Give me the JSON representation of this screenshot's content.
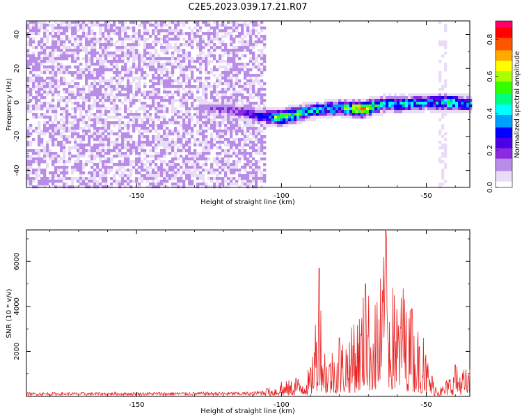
{
  "title": "C2E5.2023.039.17.21.R07",
  "colors": {
    "snr_line": "#e8201f",
    "axis": "#000000",
    "background": "#ffffff"
  },
  "colormap": [
    "#ffffff",
    "#e9dcf7",
    "#b98ce8",
    "#8a2be2",
    "#4b00e8",
    "#0000ff",
    "#00a0ff",
    "#00ffff",
    "#00ff7f",
    "#33ff00",
    "#aaff00",
    "#ffff00",
    "#ffaa00",
    "#ff5500",
    "#ff0000",
    "#ff0066"
  ],
  "chart_data": [
    {
      "type": "heatmap",
      "name": "spectrogram",
      "xlabel": "Height of straight line (km)",
      "ylabel": "Frequency (Hz)",
      "xlim": [
        -188,
        -35
      ],
      "ylim": [
        -50,
        48
      ],
      "xticks": [
        -150,
        -100,
        -50
      ],
      "yticks": [
        -40,
        -20,
        0,
        20,
        40
      ],
      "xtick_labels": [
        "-150",
        "-100",
        "-50"
      ],
      "ytick_labels": [
        "-40",
        "-20",
        "0",
        "20",
        "40"
      ],
      "colorbar": {
        "label": "Normalized spectral amplitude",
        "range": [
          0.0,
          0.9
        ],
        "ticks": [
          0.0,
          0.2,
          0.4,
          0.6,
          0.8
        ],
        "tick_labels": [
          "0.0",
          "0.2",
          "0.4",
          "0.6",
          "0.8"
        ]
      },
      "features": {
        "noise_region_x": [
          -188,
          -105
        ],
        "noise_amplitude": [
          0.05,
          0.15
        ],
        "signal_band": [
          {
            "x": -128,
            "freq": -3,
            "amp": 0.15
          },
          {
            "x": -115,
            "freq": -5,
            "amp": 0.2
          },
          {
            "x": -108,
            "freq": -8,
            "amp": 0.3
          },
          {
            "x": -100,
            "freq": -9,
            "amp": 0.7
          },
          {
            "x": -90,
            "freq": -5,
            "amp": 0.45
          },
          {
            "x": -80,
            "freq": -3,
            "amp": 0.45
          },
          {
            "x": -72,
            "freq": -4,
            "amp": 0.85
          },
          {
            "x": -65,
            "freq": -1,
            "amp": 0.45
          },
          {
            "x": -58,
            "freq": -1,
            "amp": 0.5
          },
          {
            "x": -50,
            "freq": 0,
            "amp": 0.4
          },
          {
            "x": -42,
            "freq": 0,
            "amp": 0.6
          },
          {
            "x": -36,
            "freq": -1,
            "amp": 0.4
          }
        ],
        "faint_column_x": -44
      }
    },
    {
      "type": "line",
      "name": "snr",
      "xlabel": "Height of straight line (km)",
      "ylabel": "SNR (10 * v/v)",
      "xlim": [
        -188,
        -35
      ],
      "ylim": [
        0,
        7400
      ],
      "xticks": [
        -150,
        -100,
        -50
      ],
      "yticks": [
        2000,
        4000,
        6000
      ],
      "xtick_labels": [
        "-150",
        "-100",
        "-50"
      ],
      "ytick_labels": [
        "2000",
        "4000",
        "6000"
      ],
      "envelope": [
        {
          "x": -188,
          "y": 150
        },
        {
          "x": -110,
          "y": 180
        },
        {
          "x": -105,
          "y": 350
        },
        {
          "x": -100,
          "y": 650
        },
        {
          "x": -95,
          "y": 800
        },
        {
          "x": -90,
          "y": 1300
        },
        {
          "x": -87,
          "y": 5700
        },
        {
          "x": -85,
          "y": 1900
        },
        {
          "x": -80,
          "y": 2600
        },
        {
          "x": -75,
          "y": 3200
        },
        {
          "x": -71,
          "y": 5000
        },
        {
          "x": -67,
          "y": 4200
        },
        {
          "x": -64,
          "y": 7400
        },
        {
          "x": -61,
          "y": 4500
        },
        {
          "x": -58,
          "y": 4800
        },
        {
          "x": -55,
          "y": 3900
        },
        {
          "x": -51,
          "y": 2600
        },
        {
          "x": -48,
          "y": 900
        },
        {
          "x": -45,
          "y": 400
        },
        {
          "x": -40,
          "y": 1400
        },
        {
          "x": -35,
          "y": 1200
        }
      ]
    }
  ]
}
